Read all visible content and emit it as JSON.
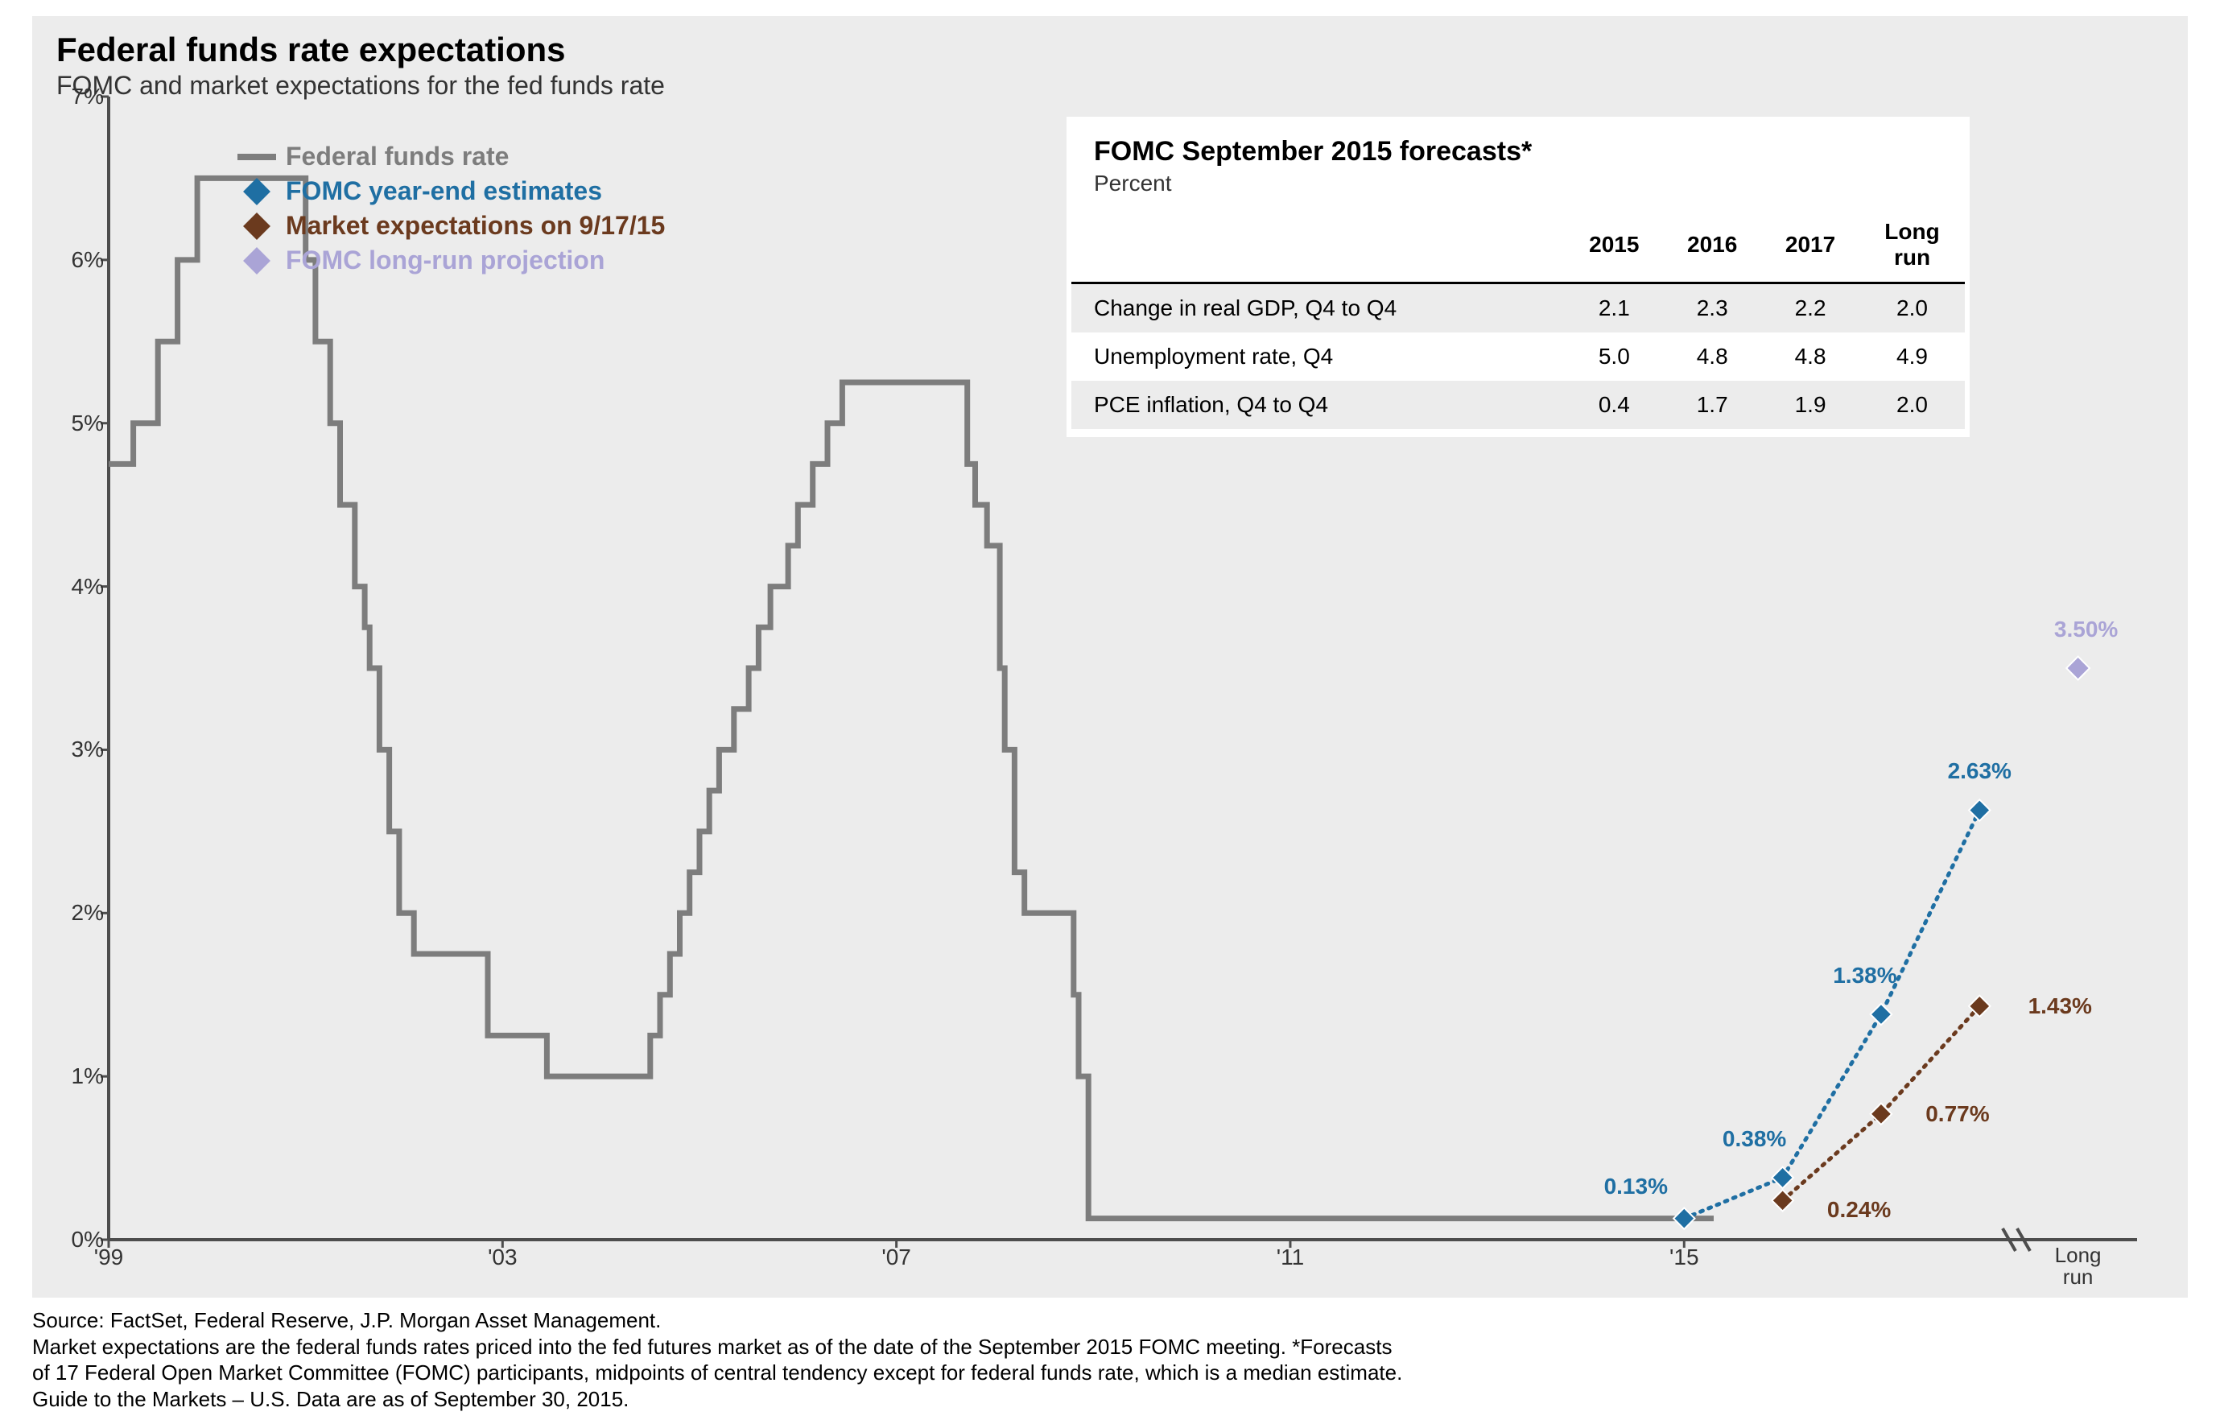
{
  "chart": {
    "type": "line+scatter",
    "background_color": "#ececec",
    "page_background": "#ffffff",
    "title": "Federal funds rate expectations",
    "title_fontsize": 42,
    "subtitle": "FOMC and market expectations for the fed funds rate",
    "subtitle_fontsize": 32,
    "y": {
      "min": 0,
      "max": 7,
      "tick_step": 1,
      "suffix": "%",
      "label_fontsize": 28
    },
    "x": {
      "min": 1999,
      "max": 2019.6,
      "ticks": [
        1999,
        2003,
        2007,
        2011,
        2015
      ],
      "tick_labels": [
        "'99",
        "'03",
        "'07",
        "'11",
        "'15"
      ],
      "label_fontsize": 28,
      "long_run_x": 2019.0,
      "long_run_label": "Long\nrun",
      "axis_break_x": 2018.3
    },
    "axis_color": "#4d4d4d",
    "axis_width": 4,
    "legend": {
      "fontsize": 32,
      "items": [
        {
          "type": "line",
          "color": "#7d7d7d",
          "label": "Federal funds rate"
        },
        {
          "type": "diamond",
          "color": "#1f6fa3",
          "label": "FOMC year-end estimates"
        },
        {
          "type": "diamond",
          "color": "#6b3a1e",
          "label": "Market expectations on 9/17/15"
        },
        {
          "type": "diamond",
          "color": "#aaa4d6",
          "label": "FOMC long-run projection"
        }
      ]
    },
    "series": {
      "fed_funds": {
        "color": "#7d7d7d",
        "width": 7,
        "type": "step",
        "points": [
          [
            1999.0,
            4.75
          ],
          [
            1999.25,
            5.0
          ],
          [
            1999.4,
            5.0
          ],
          [
            1999.5,
            5.5
          ],
          [
            1999.6,
            5.5
          ],
          [
            1999.7,
            6.0
          ],
          [
            1999.8,
            6.0
          ],
          [
            1999.9,
            6.5
          ],
          [
            2000.3,
            6.5
          ],
          [
            2000.35,
            6.5
          ],
          [
            2000.9,
            6.5
          ],
          [
            2001.0,
            6.0
          ],
          [
            2001.05,
            6.0
          ],
          [
            2001.1,
            5.5
          ],
          [
            2001.15,
            5.5
          ],
          [
            2001.25,
            5.0
          ],
          [
            2001.3,
            5.0
          ],
          [
            2001.35,
            4.5
          ],
          [
            2001.4,
            4.5
          ],
          [
            2001.5,
            4.0
          ],
          [
            2001.55,
            4.0
          ],
          [
            2001.6,
            3.75
          ],
          [
            2001.65,
            3.5
          ],
          [
            2001.7,
            3.5
          ],
          [
            2001.75,
            3.0
          ],
          [
            2001.8,
            3.0
          ],
          [
            2001.85,
            2.5
          ],
          [
            2001.95,
            2.0
          ],
          [
            2002.0,
            2.0
          ],
          [
            2002.1,
            1.75
          ],
          [
            2002.8,
            1.75
          ],
          [
            2002.85,
            1.25
          ],
          [
            2003.4,
            1.25
          ],
          [
            2003.45,
            1.0
          ],
          [
            2004.4,
            1.0
          ],
          [
            2004.5,
            1.25
          ],
          [
            2004.6,
            1.5
          ],
          [
            2004.7,
            1.75
          ],
          [
            2004.8,
            2.0
          ],
          [
            2004.9,
            2.25
          ],
          [
            2005.0,
            2.5
          ],
          [
            2005.1,
            2.75
          ],
          [
            2005.2,
            3.0
          ],
          [
            2005.35,
            3.25
          ],
          [
            2005.5,
            3.5
          ],
          [
            2005.6,
            3.75
          ],
          [
            2005.72,
            4.0
          ],
          [
            2005.9,
            4.25
          ],
          [
            2006.0,
            4.5
          ],
          [
            2006.15,
            4.75
          ],
          [
            2006.3,
            5.0
          ],
          [
            2006.45,
            5.25
          ],
          [
            2007.6,
            5.25
          ],
          [
            2007.72,
            4.75
          ],
          [
            2007.8,
            4.5
          ],
          [
            2007.92,
            4.25
          ],
          [
            2008.05,
            3.5
          ],
          [
            2008.1,
            3.0
          ],
          [
            2008.2,
            2.25
          ],
          [
            2008.3,
            2.0
          ],
          [
            2008.75,
            2.0
          ],
          [
            2008.8,
            1.5
          ],
          [
            2008.85,
            1.0
          ],
          [
            2008.95,
            0.13
          ],
          [
            2015.3,
            0.13
          ]
        ]
      },
      "fomc_estimates": {
        "color": "#1f6fa3",
        "marker": "diamond",
        "marker_size": 22,
        "line_dash": "3,8",
        "line_width": 5,
        "points": [
          [
            2015.0,
            0.13,
            "0.13%"
          ],
          [
            2016.0,
            0.38,
            "0.38%"
          ],
          [
            2017.0,
            1.38,
            "1.38%"
          ],
          [
            2018.0,
            2.63,
            "2.63%"
          ]
        ],
        "label_offsets": [
          [
            -60,
            -40
          ],
          [
            -35,
            -48
          ],
          [
            -20,
            -48
          ],
          [
            0,
            -48
          ]
        ]
      },
      "market_exp": {
        "color": "#6b3a1e",
        "marker": "diamond",
        "marker_size": 22,
        "line_dash": "3,8",
        "line_width": 5,
        "points": [
          [
            2016.0,
            0.24,
            "0.24%"
          ],
          [
            2017.0,
            0.77,
            "0.77%"
          ],
          [
            2018.0,
            1.43,
            "1.43%"
          ]
        ],
        "label_offsets": [
          [
            95,
            12
          ],
          [
            95,
            0
          ],
          [
            100,
            0
          ]
        ]
      },
      "fomc_long_run": {
        "color": "#aaa4d6",
        "marker": "diamond",
        "marker_size": 24,
        "points": [
          [
            2019.0,
            3.5,
            "3.50%"
          ]
        ],
        "label_offsets": [
          [
            10,
            -48
          ]
        ]
      }
    }
  },
  "table": {
    "title": "FOMC September 2015 forecasts*",
    "subtitle": "Percent",
    "columns": [
      "",
      "2015",
      "2016",
      "2017",
      "Long run"
    ],
    "rows": [
      {
        "label": "Change in real GDP, Q4 to Q4",
        "values": [
          "2.1",
          "2.3",
          "2.2",
          "2.0"
        ],
        "band": true
      },
      {
        "label": "Unemployment rate, Q4",
        "values": [
          "5.0",
          "4.8",
          "4.8",
          "4.9"
        ],
        "band": false
      },
      {
        "label": "PCE inflation, Q4 to Q4",
        "values": [
          "0.4",
          "1.7",
          "1.9",
          "2.0"
        ],
        "band": true
      }
    ],
    "header_rule_color": "#000000",
    "band_color": "#ececec",
    "fontsize": 28
  },
  "footnote": {
    "lines": [
      "Source: FactSet, Federal Reserve, J.P. Morgan Asset Management.",
      "Market expectations are the federal funds rates priced into the fed futures market as of the date of the September 2015 FOMC meeting. *Forecasts",
      "of 17 Federal Open Market Committee (FOMC) participants, midpoints of central tendency except for federal funds rate, which is a median estimate.",
      "Guide to the Markets – U.S. Data are as of September 30, 2015."
    ],
    "fontsize": 26,
    "color": "#000000"
  }
}
